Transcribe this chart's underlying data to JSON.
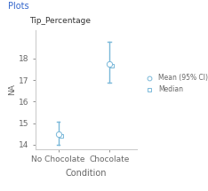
{
  "title_top": "Plots",
  "subtitle": "Tip_Percentage",
  "xlabel": "Condition",
  "ylabel": "NA",
  "categories": [
    "No Chocolate",
    "Chocolate"
  ],
  "means": [
    14.5,
    17.75
  ],
  "medians": [
    14.42,
    17.65
  ],
  "ci_lower": [
    14.0,
    16.9
  ],
  "ci_upper": [
    15.05,
    18.8
  ],
  "ylim": [
    13.8,
    19.3
  ],
  "yticks": [
    14,
    15,
    16,
    17,
    18
  ],
  "ci_color": "#7ab8d9",
  "legend_mean_label": "Mean (95% CI)",
  "legend_median_label": "Median",
  "title_color": "#3366cc",
  "text_color": "#666666",
  "spine_color": "#cccccc",
  "background_color": "#ffffff",
  "font_size": 6.5
}
